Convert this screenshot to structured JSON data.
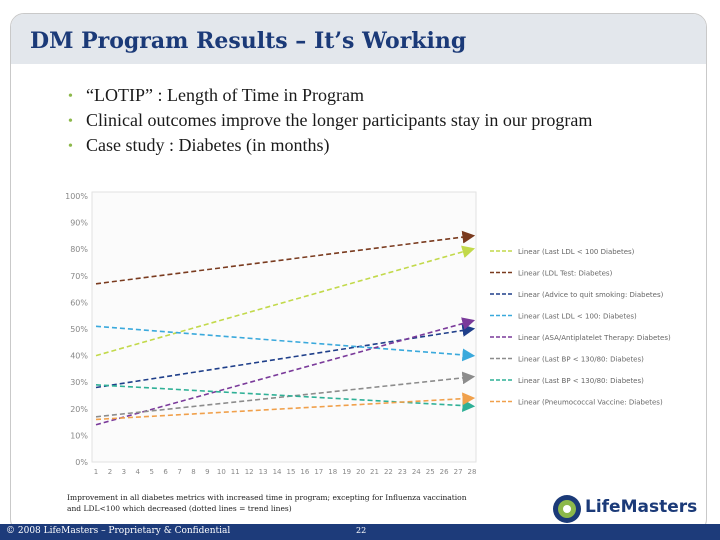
{
  "slide": {
    "title": "DM Program Results – It’s Working",
    "bullets": [
      "“LOTIP” :  Length of Time in Program",
      "Clinical outcomes improve the longer participants stay in our program",
      "Case study :  Diabetes (in months)"
    ],
    "caption": "Improvement in all diabetes metrics with increased time in program; excepting for Influenza vaccination and LDL<100 which decreased (dotted lines = trend lines)",
    "logo_text": "LifeMasters",
    "footer": "© 2008 LifeMasters – Proprietary & Confidential",
    "page_number": "22"
  },
  "colors": {
    "title": "#1b3a78",
    "footer_bar": "#1d3b7a",
    "bullet": "#8cb84a"
  },
  "chart_data": {
    "type": "line",
    "x": [
      1,
      2,
      3,
      4,
      5,
      6,
      7,
      8,
      9,
      10,
      11,
      12,
      13,
      14,
      15,
      16,
      17,
      18,
      19,
      20,
      21,
      22,
      23,
      24,
      25,
      26,
      27,
      28
    ],
    "x_tick_labels": [
      "1",
      "2",
      "3",
      "4",
      "5",
      "6",
      "7",
      "8",
      "9",
      "10",
      "11",
      "12",
      "13",
      "14",
      "15",
      "16",
      "17",
      "18",
      "19",
      "20",
      "21",
      "22",
      "23",
      "24",
      "25",
      "26",
      "27",
      "28"
    ],
    "y_tick_labels": [
      "0%",
      "10%",
      "20%",
      "30%",
      "40%",
      "50%",
      "60%",
      "70%",
      "80%",
      "90%",
      "100%"
    ],
    "ylim": [
      0,
      100
    ],
    "xlim": [
      1,
      28
    ],
    "grid": false,
    "legend_placement": "right",
    "line_style": "dashed",
    "series": [
      {
        "name": "Linear (Last LDL < 100 Diabetes)",
        "start": 40,
        "end": 80,
        "color": "#c2d94a"
      },
      {
        "name": "Linear (LDL Test: Diabetes)",
        "start": 67,
        "end": 85,
        "color": "#7a3b1f"
      },
      {
        "name": "Linear (Advice to quit smoking: Diabetes)",
        "start": 28,
        "end": 50,
        "color": "#1f3f8a"
      },
      {
        "name": "Linear (Last LDL < 100: Diabetes)",
        "start": 51,
        "end": 40,
        "color": "#3aa9dc"
      },
      {
        "name": "Linear (ASA/Antiplatelet Therapy: Diabetes)",
        "start": 14,
        "end": 53,
        "color": "#7a3a9a"
      },
      {
        "name": "Linear (Last BP < 130/80: Diabetes)",
        "start": 17,
        "end": 32,
        "color": "#8c8c8c"
      },
      {
        "name": "Linear (Last BP < 130/80: Diabetes)",
        "start": 29,
        "end": 21,
        "color": "#2fb096"
      },
      {
        "name": "Linear (Pneumococcal Vaccine: Diabetes)",
        "start": 16,
        "end": 24,
        "color": "#f0a04b"
      }
    ]
  }
}
